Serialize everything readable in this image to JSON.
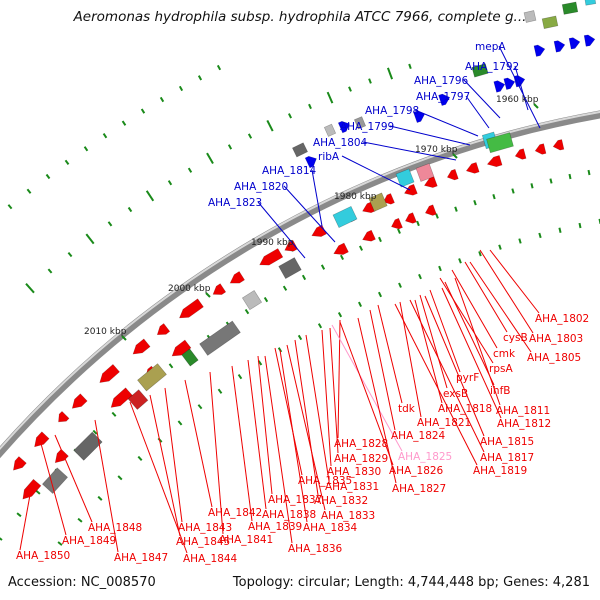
{
  "title": "Aeromonas hydrophila subsp. hydrophila ATCC 7966, complete g...",
  "footer": {
    "accession": "Accession: NC_008570",
    "topology": "Topology: circular; Length: 4,744,448 bp; Genes: 4,281"
  },
  "colors": {
    "backbone": "#8a8a8a",
    "forward_gene": "#ee0000",
    "reverse_gene": "#0000ee",
    "forward_label": "#ee0000",
    "reverse_label": "#0000cc",
    "highlight_label": "#ff99cc",
    "ticks": "#1a8a1a"
  },
  "kbp_ticks": [
    "1960 kbp",
    "1970 kbp",
    "1980 kbp",
    "1990 kbp",
    "2000 kbp",
    "2010 kbp"
  ],
  "top_labels": [
    "mepA",
    "AHA_1792",
    "AHA_1796",
    "AHA_1797",
    "AHA_1798",
    "AHA_1799",
    "AHA_1804",
    "ribA",
    "AHA_1814",
    "AHA_1820",
    "AHA_1823"
  ],
  "bottom_labels": [
    {
      "text": "AHA_1802",
      "highlight": false
    },
    {
      "text": "cysB",
      "highlight": false
    },
    {
      "text": "AHA_1803",
      "highlight": false
    },
    {
      "text": "cmk",
      "highlight": false
    },
    {
      "text": "AHA_1805",
      "highlight": false
    },
    {
      "text": "rpsA",
      "highlight": false
    },
    {
      "text": "pyrF",
      "highlight": false
    },
    {
      "text": "ihfB",
      "highlight": false
    },
    {
      "text": "exsB",
      "highlight": false
    },
    {
      "text": "AHA_1811",
      "highlight": false
    },
    {
      "text": "tdk",
      "highlight": false
    },
    {
      "text": "AHA_1818",
      "highlight": false
    },
    {
      "text": "AHA_1812",
      "highlight": false
    },
    {
      "text": "AHA_1821",
      "highlight": false
    },
    {
      "text": "AHA_1824",
      "highlight": false
    },
    {
      "text": "AHA_1815",
      "highlight": false
    },
    {
      "text": "AHA_1828",
      "highlight": false
    },
    {
      "text": "AHA_1825",
      "highlight": true
    },
    {
      "text": "AHA_1817",
      "highlight": false
    },
    {
      "text": "AHA_1829",
      "highlight": false
    },
    {
      "text": "AHA_1819",
      "highlight": false
    },
    {
      "text": "AHA_1830",
      "highlight": false
    },
    {
      "text": "AHA_1826",
      "highlight": false
    },
    {
      "text": "AHA_1835",
      "highlight": false
    },
    {
      "text": "AHA_1831",
      "highlight": false
    },
    {
      "text": "AHA_1827",
      "highlight": false
    },
    {
      "text": "AHA_1837",
      "highlight": false
    },
    {
      "text": "AHA_1832",
      "highlight": false
    },
    {
      "text": "AHA_1842",
      "highlight": false
    },
    {
      "text": "AHA_1838",
      "highlight": false
    },
    {
      "text": "AHA_1833",
      "highlight": false
    },
    {
      "text": "AHA_1843",
      "highlight": false
    },
    {
      "text": "AHA_1839",
      "highlight": false
    },
    {
      "text": "AHA_1834",
      "highlight": false
    },
    {
      "text": "AHA_1848",
      "highlight": false
    },
    {
      "text": "AHA_1841",
      "highlight": false
    },
    {
      "text": "AHA_1849",
      "highlight": false
    },
    {
      "text": "AHA_1845",
      "highlight": false
    },
    {
      "text": "AHA_1836",
      "highlight": false
    },
    {
      "text": "AHA_1847",
      "highlight": false
    },
    {
      "text": "AHA_1844",
      "highlight": false
    },
    {
      "text": "AHA_1850",
      "highlight": false
    }
  ]
}
